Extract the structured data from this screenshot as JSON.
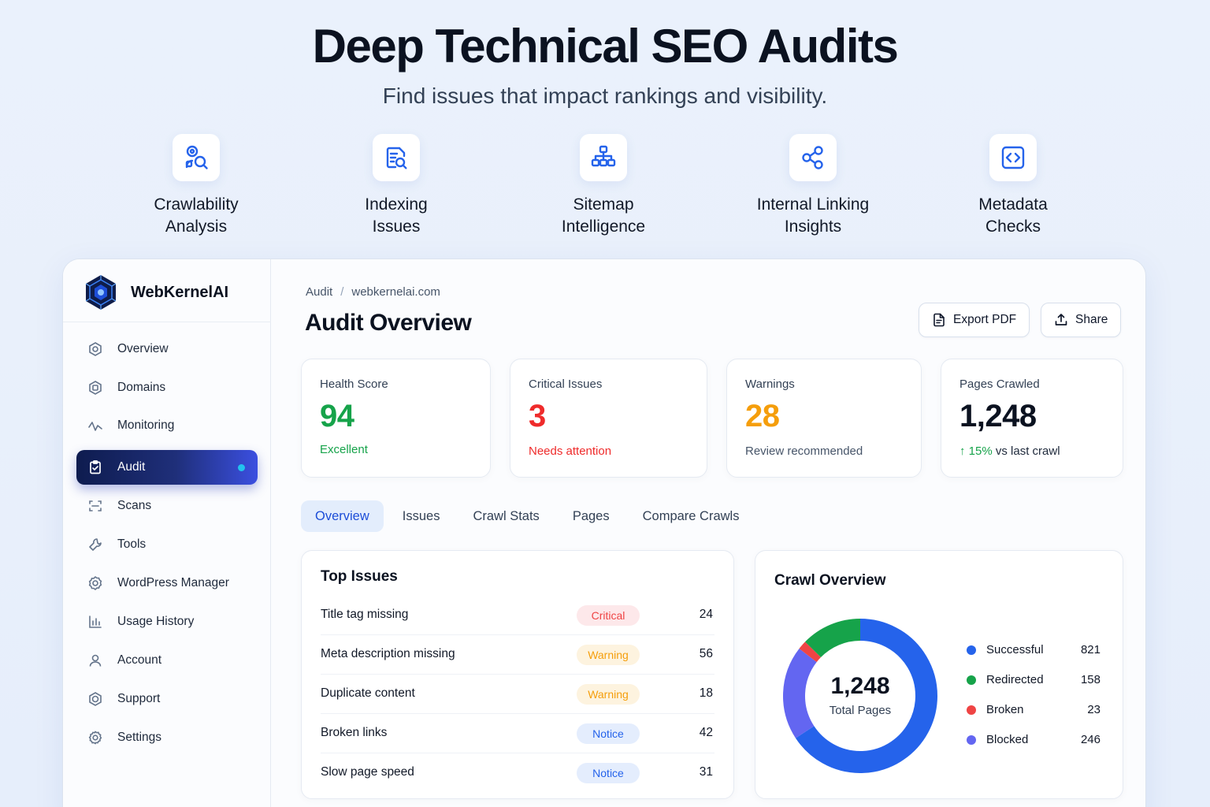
{
  "hero": {
    "title": "Deep Technical SEO Audits",
    "subtitle": "Find issues that impact rankings and visibility."
  },
  "features": [
    {
      "line1": "Crawlability",
      "line2": "Analysis",
      "icon": "crawl-search-icon"
    },
    {
      "line1": "Indexing",
      "line2": "Issues",
      "icon": "document-search-icon"
    },
    {
      "line1": "Sitemap",
      "line2": "Intelligence",
      "icon": "sitemap-icon"
    },
    {
      "line1": "Internal Linking",
      "line2": "Insights",
      "icon": "share-nodes-icon"
    },
    {
      "line1": "Metadata",
      "line2": "Checks",
      "icon": "code-icon"
    }
  ],
  "brand": {
    "name": "WebKernelAI"
  },
  "sidebar": {
    "items": [
      {
        "label": "Overview",
        "icon": "overview-icon"
      },
      {
        "label": "Domains",
        "icon": "domains-icon"
      },
      {
        "label": "Monitoring",
        "icon": "pulse-icon"
      },
      {
        "label": "Audit",
        "icon": "clipboard-check-icon",
        "active": true
      },
      {
        "label": "Scans",
        "icon": "scan-icon"
      },
      {
        "label": "Tools",
        "icon": "tools-icon"
      },
      {
        "label": "WordPress Manager",
        "icon": "wordpress-icon"
      },
      {
        "label": "Usage History",
        "icon": "bar-chart-icon"
      },
      {
        "label": "Account",
        "icon": "user-icon"
      },
      {
        "label": "Support",
        "icon": "support-icon"
      },
      {
        "label": "Settings",
        "icon": "settings-icon"
      }
    ]
  },
  "breadcrumb": {
    "root": "Audit",
    "separator": "/",
    "current": "webkernelai.com"
  },
  "page": {
    "title": "Audit Overview"
  },
  "actions": {
    "export_label": "Export PDF",
    "share_label": "Share"
  },
  "stats": {
    "health": {
      "label": "Health Score",
      "value": "94",
      "note": "Excellent",
      "color": "#16a34a"
    },
    "critical": {
      "label": "Critical Issues",
      "value": "3",
      "note": "Needs attention",
      "color": "#ef2b2b"
    },
    "warnings": {
      "label": "Warnings",
      "value": "28",
      "note": "Review recommended",
      "color": "#f59e0b"
    },
    "pages": {
      "label": "Pages Crawled",
      "value": "1,248",
      "trend": "15%",
      "note": "vs last crawl",
      "color": "#16a34a"
    }
  },
  "tabs": [
    "Overview",
    "Issues",
    "Crawl Stats",
    "Pages",
    "Compare Crawls"
  ],
  "top_issues": {
    "title": "Top Issues",
    "rows": [
      {
        "name": "Title tag missing",
        "severity": "Critical",
        "count": "24"
      },
      {
        "name": "Meta description missing",
        "severity": "Warning",
        "count": "56"
      },
      {
        "name": "Duplicate content",
        "severity": "Warning",
        "count": "18"
      },
      {
        "name": "Broken links",
        "severity": "Notice",
        "count": "42"
      },
      {
        "name": "Slow page speed",
        "severity": "Notice",
        "count": "31"
      }
    ],
    "severity_colors": {
      "Critical": {
        "bg": "#fde8ea",
        "fg": "#ef4444"
      },
      "Warning": {
        "bg": "#fdf3df",
        "fg": "#f59e0b"
      },
      "Notice": {
        "bg": "#e4edfd",
        "fg": "#2563eb"
      }
    }
  },
  "crawl_overview": {
    "title": "Crawl Overview",
    "total_value": "1,248",
    "total_label": "Total Pages",
    "chart_data": {
      "type": "pie",
      "categories": [
        "Successful",
        "Redirected",
        "Broken",
        "Blocked"
      ],
      "values": [
        821,
        158,
        23,
        246
      ],
      "colors": [
        "#2563eb",
        "#16a34a",
        "#ef4444",
        "#6366f1"
      ]
    }
  }
}
